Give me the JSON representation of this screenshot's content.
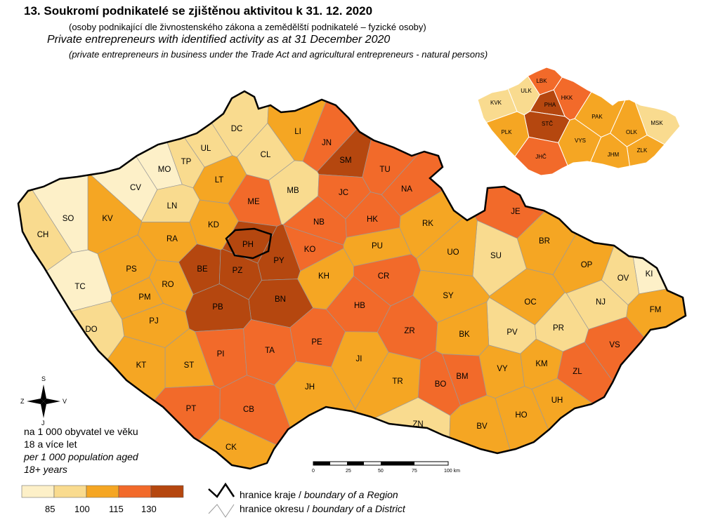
{
  "title": "13. Soukromí podnikatelé se zjištěnou aktivitou k 31. 12. 2020",
  "subtitle_cz": "(osoby podnikající dle  živnostenského zákona a zemědělští podnikatelé – fyzické osoby)",
  "title_en": "Private entrepreneurs with identified activity as at 31 December 2020",
  "subtitle_en": "(private entrepreneurs in business under the Trade Act and agricultural entrepreneurs - natural persons)",
  "colors": {
    "class1": "#FDF0C8",
    "class2": "#F9DB8F",
    "class3": "#F5A623",
    "class4": "#F26A2A",
    "class5": "#B5470F",
    "region_border": "#000000",
    "district_border": "#9a9a9a"
  },
  "legend": {
    "line1": "na 1 000 obyvatel ve věku",
    "line2": "18 a více let",
    "line3": "per 1 000 population aged",
    "line4": "18+ years",
    "breaks": [
      "85",
      "100",
      "115",
      "130"
    ]
  },
  "boundaries": {
    "region": "hranice kraje / ",
    "region_en": "boundary of a Region",
    "district": "hranice okresu / ",
    "district_en": "boundary of a District"
  },
  "compass": {
    "north": "S",
    "south": "J",
    "east": "V",
    "west": "Z"
  },
  "scale": {
    "ticks": [
      "0",
      "25",
      "50",
      "75",
      "100 km"
    ]
  },
  "districts": [
    {
      "code": "DC",
      "class": 2
    },
    {
      "code": "LI",
      "class": 3
    },
    {
      "code": "JN",
      "class": 4
    },
    {
      "code": "SM",
      "class": 5
    },
    {
      "code": "UL",
      "class": 2
    },
    {
      "code": "TP",
      "class": 2
    },
    {
      "code": "CL",
      "class": 2
    },
    {
      "code": "MO",
      "class": 1
    },
    {
      "code": "TU",
      "class": 4
    },
    {
      "code": "LT",
      "class": 3
    },
    {
      "code": "CV",
      "class": 1
    },
    {
      "code": "MB",
      "class": 2
    },
    {
      "code": "JC",
      "class": 4
    },
    {
      "code": "NA",
      "class": 4
    },
    {
      "code": "ME",
      "class": 4
    },
    {
      "code": "LN",
      "class": 2
    },
    {
      "code": "KV",
      "class": 3
    },
    {
      "code": "JE",
      "class": 4
    },
    {
      "code": "SO",
      "class": 1
    },
    {
      "code": "NB",
      "class": 4
    },
    {
      "code": "HK",
      "class": 4
    },
    {
      "code": "RK",
      "class": 3
    },
    {
      "code": "KD",
      "class": 3
    },
    {
      "code": "CH",
      "class": 2
    },
    {
      "code": "RA",
      "class": 3
    },
    {
      "code": "PH",
      "class": 5
    },
    {
      "code": "PU",
      "class": 3
    },
    {
      "code": "SU",
      "class": 2
    },
    {
      "code": "BR",
      "class": 3
    },
    {
      "code": "KO",
      "class": 4
    },
    {
      "code": "UO",
      "class": 3
    },
    {
      "code": "BE",
      "class": 5
    },
    {
      "code": "PY",
      "class": 5
    },
    {
      "code": "PS",
      "class": 3
    },
    {
      "code": "PZ",
      "class": 5
    },
    {
      "code": "OP",
      "class": 3
    },
    {
      "code": "KH",
      "class": 3
    },
    {
      "code": "CR",
      "class": 4
    },
    {
      "code": "KI",
      "class": 1
    },
    {
      "code": "OV",
      "class": 2
    },
    {
      "code": "RO",
      "class": 3
    },
    {
      "code": "TC",
      "class": 1
    },
    {
      "code": "PM",
      "class": 3
    },
    {
      "code": "SY",
      "class": 3
    },
    {
      "code": "BN",
      "class": 5
    },
    {
      "code": "NJ",
      "class": 2
    },
    {
      "code": "PB",
      "class": 5
    },
    {
      "code": "OC",
      "class": 3
    },
    {
      "code": "HB",
      "class": 4
    },
    {
      "code": "FM",
      "class": 3
    },
    {
      "code": "PJ",
      "class": 3
    },
    {
      "code": "DO",
      "class": 2
    },
    {
      "code": "PR",
      "class": 2
    },
    {
      "code": "ZR",
      "class": 4
    },
    {
      "code": "PV",
      "class": 2
    },
    {
      "code": "BK",
      "class": 3
    },
    {
      "code": "PE",
      "class": 4
    },
    {
      "code": "VS",
      "class": 4
    },
    {
      "code": "PI",
      "class": 4
    },
    {
      "code": "TA",
      "class": 4
    },
    {
      "code": "JI",
      "class": 3
    },
    {
      "code": "ST",
      "class": 3
    },
    {
      "code": "KT",
      "class": 3
    },
    {
      "code": "KM",
      "class": 3
    },
    {
      "code": "VY",
      "class": 3
    },
    {
      "code": "ZL",
      "class": 4
    },
    {
      "code": "BM",
      "class": 4
    },
    {
      "code": "BO",
      "class": 4
    },
    {
      "code": "TR",
      "class": 3
    },
    {
      "code": "JH",
      "class": 3
    },
    {
      "code": "UH",
      "class": 3
    },
    {
      "code": "PT",
      "class": 4
    },
    {
      "code": "CB",
      "class": 4
    },
    {
      "code": "ZN",
      "class": 2
    },
    {
      "code": "HO",
      "class": 3
    },
    {
      "code": "BV",
      "class": 3
    },
    {
      "code": "CK",
      "class": 3
    }
  ],
  "regions": [
    {
      "code": "LBK",
      "class": 4
    },
    {
      "code": "ULK",
      "class": 2
    },
    {
      "code": "KVK",
      "class": 2
    },
    {
      "code": "HKK",
      "class": 4
    },
    {
      "code": "PHA",
      "class": 5
    },
    {
      "code": "PAK",
      "class": 3
    },
    {
      "code": "STČ",
      "class": 5
    },
    {
      "code": "MSK",
      "class": 2
    },
    {
      "code": "PLK",
      "class": 3
    },
    {
      "code": "OLK",
      "class": 3
    },
    {
      "code": "VYS",
      "class": 3
    },
    {
      "code": "ZLK",
      "class": 3
    },
    {
      "code": "JHM",
      "class": 3
    },
    {
      "code": "JHČ",
      "class": 4
    }
  ]
}
